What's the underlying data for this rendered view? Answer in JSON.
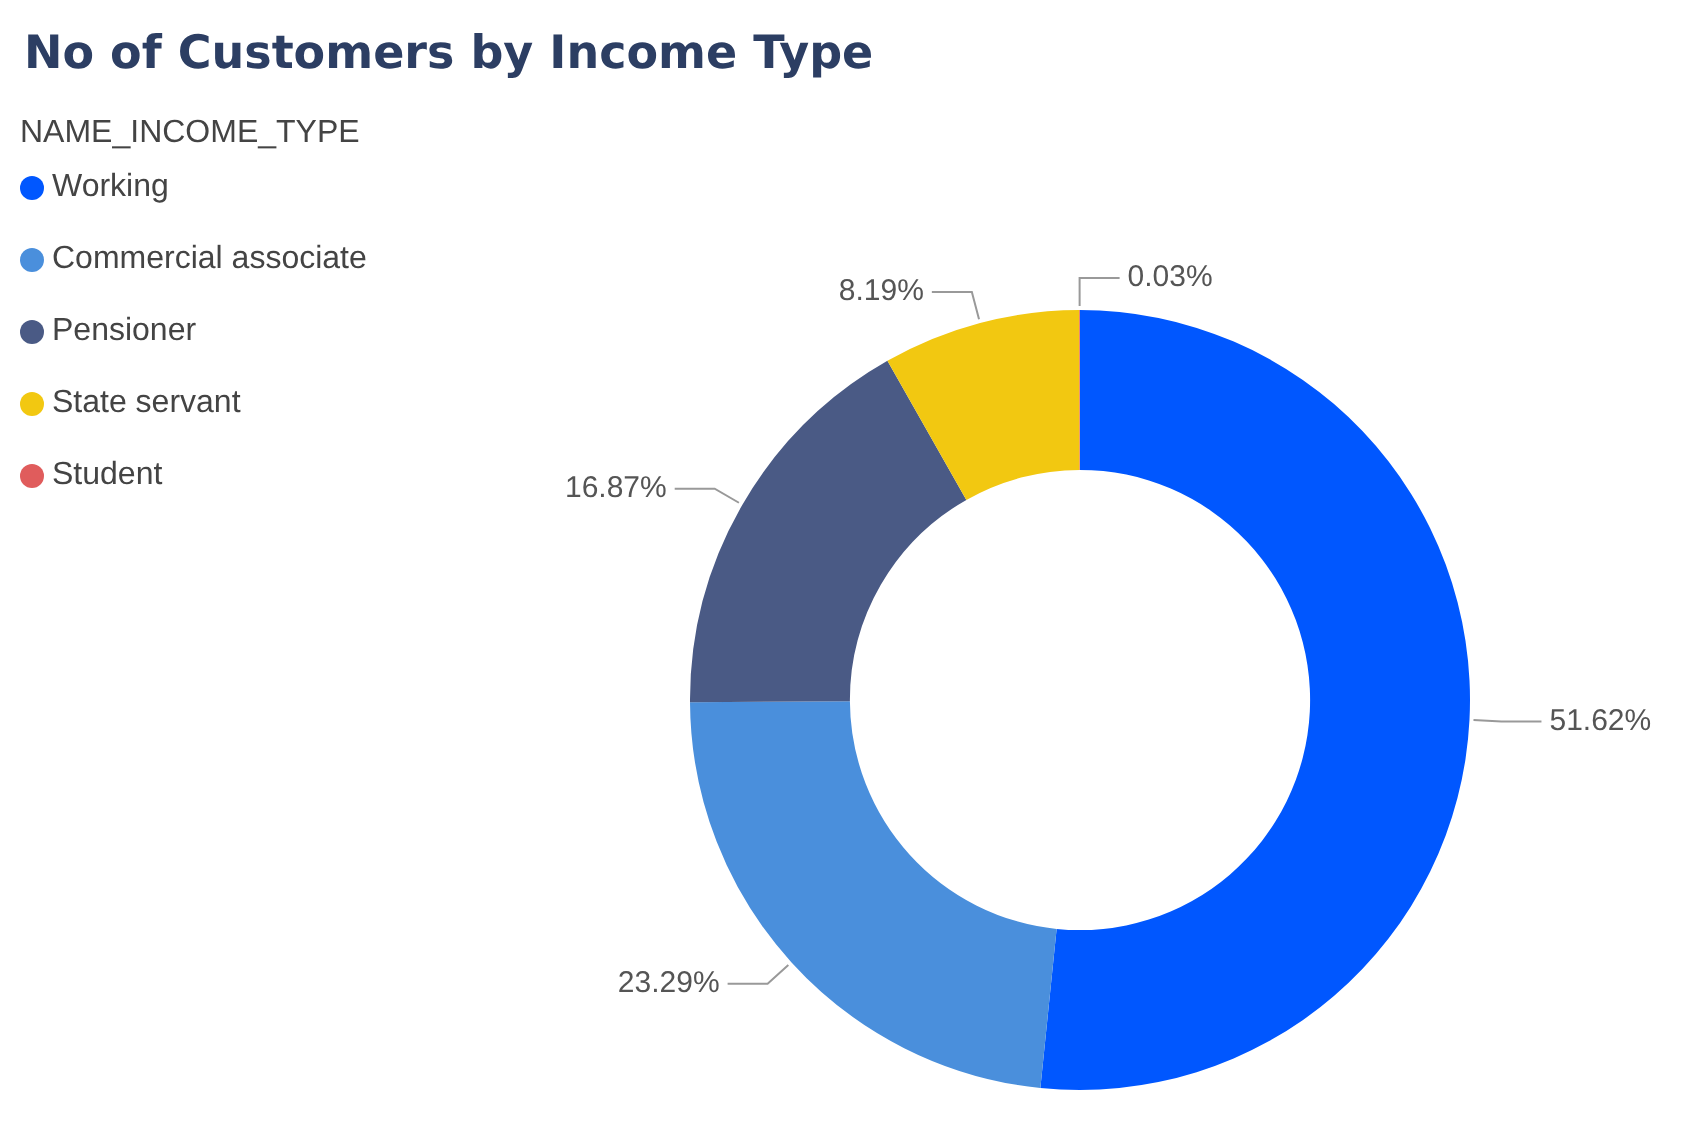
{
  "chart_data": {
    "type": "donut",
    "title": "No of Customers by Income Type",
    "legend_title": "NAME_INCOME_TYPE",
    "legend": "top left",
    "categories": [
      "Working",
      "Commercial associate",
      "Pensioner",
      "State servant",
      "Student"
    ],
    "values": [
      51.62,
      23.29,
      16.87,
      8.19,
      0.03
    ],
    "colors": [
      "#0057ff",
      "#4a8fdc",
      "#4a5a85",
      "#f2c811",
      "#e05c5c"
    ],
    "value_labels": [
      "51.62%",
      "23.29%",
      "16.87%",
      "8.19%",
      "0.03%"
    ]
  }
}
